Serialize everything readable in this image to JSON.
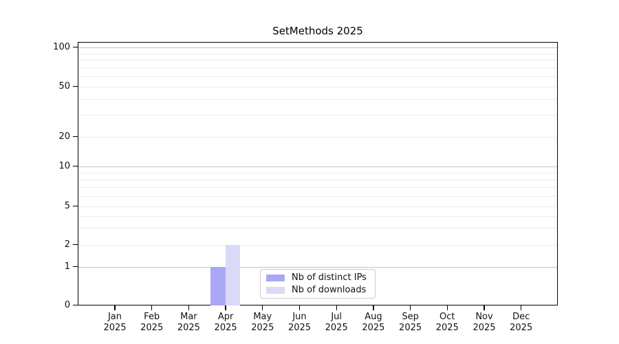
{
  "chart_data": {
    "type": "bar",
    "title": "SetMethods 2025",
    "categories": [
      "Jan 2025",
      "Feb 2025",
      "Mar 2025",
      "Apr 2025",
      "May 2025",
      "Jun 2025",
      "Jul 2025",
      "Aug 2025",
      "Sep 2025",
      "Oct 2025",
      "Nov 2025",
      "Dec 2025"
    ],
    "months": [
      "Jan",
      "Feb",
      "Mar",
      "Apr",
      "May",
      "Jun",
      "Jul",
      "Aug",
      "Sep",
      "Oct",
      "Nov",
      "Dec"
    ],
    "year_label": "2025",
    "series": [
      {
        "name": "Nb of distinct IPs",
        "color": "#a8a8f6",
        "values": [
          0,
          0,
          0,
          1,
          0,
          0,
          0,
          0,
          0,
          0,
          0,
          0
        ]
      },
      {
        "name": "Nb of downloads",
        "color": "#dadaf8",
        "values": [
          0,
          0,
          0,
          2,
          0,
          0,
          0,
          0,
          0,
          0,
          0,
          0
        ]
      }
    ],
    "y_axis": {
      "scale": "log-like (0,1,2,5,10,20,50,100 ladder)",
      "tick_values": [
        0,
        1,
        2,
        5,
        10,
        20,
        50,
        100
      ],
      "tick_labels": [
        "0",
        "1",
        "2",
        "5",
        "10",
        "20",
        "50",
        "100"
      ],
      "ylim": [
        0,
        110
      ]
    },
    "x_axis": {
      "tick_count": 12
    },
    "grid": "horizontal, major decades darker, minor log subdivisions lighter",
    "legend_position": "lower center inside plot",
    "colors": {
      "frame": "#000000",
      "grid_major": "#c3c3c3",
      "grid_minor": "#ececec"
    }
  }
}
